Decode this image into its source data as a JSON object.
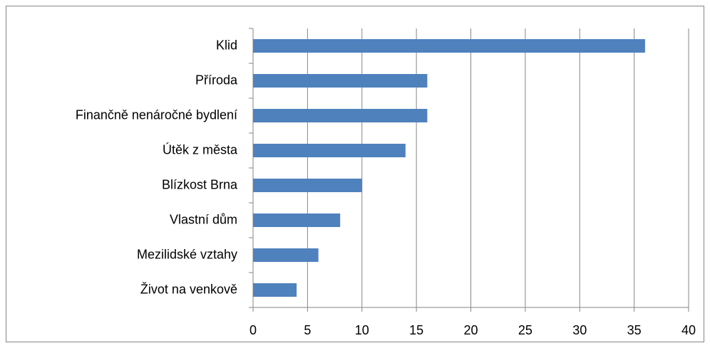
{
  "chart_data": {
    "type": "bar",
    "categories": [
      "Klid",
      "Příroda",
      "Finančně nenáročné bydlení",
      "Útěk z města",
      "Blízkost Brna",
      "Vlastní dům",
      "Mezilidské vztahy",
      "Život na venkově"
    ],
    "values": [
      36,
      16,
      16,
      14,
      10,
      8,
      6,
      4
    ],
    "color": "#4f81bd",
    "xlim": [
      0,
      40
    ],
    "xticks": [
      0,
      5,
      10,
      15,
      20,
      25,
      30,
      35,
      40
    ],
    "grid": true
  }
}
